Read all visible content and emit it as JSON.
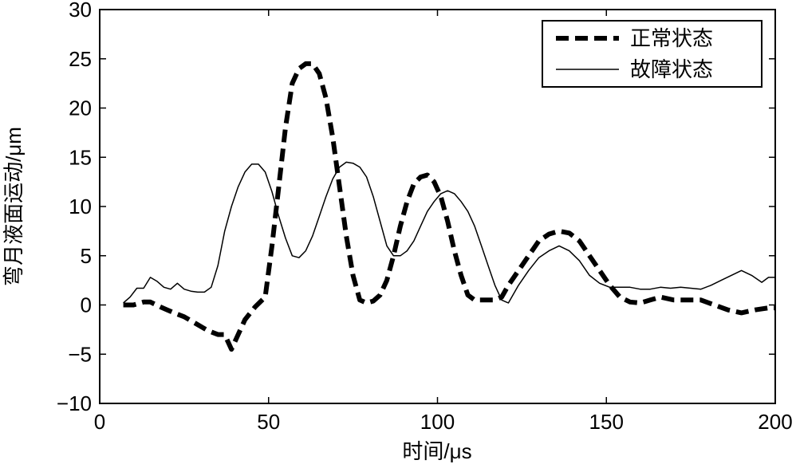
{
  "chart_data": {
    "type": "line",
    "title": "",
    "xlabel": "时间/μs",
    "ylabel": "弯月液面运动/μm",
    "xlim": [
      0,
      200
    ],
    "ylim": [
      -10,
      30
    ],
    "xticks": [
      "0",
      "50",
      "100",
      "150",
      "200"
    ],
    "yticks": [
      "−10",
      "−5",
      "0",
      "5",
      "10",
      "15",
      "20",
      "25",
      "30"
    ],
    "grid": false,
    "legend_position": "top-right",
    "series": [
      {
        "name": "正常状态",
        "style": "dashed-thick",
        "color": "#000000",
        "x": [
          7,
          10,
          13,
          15,
          18,
          20,
          22,
          25,
          28,
          30,
          32,
          35,
          37,
          39,
          41,
          43,
          46,
          49,
          51,
          53,
          55,
          57,
          59,
          61,
          63,
          65,
          67,
          69,
          71,
          73,
          75,
          77,
          79,
          81,
          83,
          85,
          87,
          89,
          91,
          93,
          95,
          97,
          99,
          101,
          103,
          105,
          107,
          109,
          111,
          113,
          115,
          117,
          119,
          121,
          124,
          127,
          130,
          133,
          136,
          139,
          142,
          145,
          148,
          151,
          154,
          157,
          160,
          163,
          166,
          170,
          174,
          178,
          182,
          186,
          190,
          194,
          198,
          200
        ],
        "y": [
          0,
          0,
          0.3,
          0.3,
          -0.2,
          -0.5,
          -0.8,
          -1.2,
          -1.8,
          -2.2,
          -2.6,
          -3.0,
          -3.0,
          -4.5,
          -3.0,
          -1.5,
          -0.2,
          0.8,
          6.0,
          12.0,
          18.0,
          22.5,
          24.0,
          24.5,
          24.5,
          23.5,
          21.0,
          17.0,
          12.0,
          7.0,
          3.0,
          0.5,
          0.2,
          0.4,
          1.0,
          2.5,
          5.0,
          8.0,
          10.5,
          12.3,
          13.0,
          13.2,
          12.5,
          11.0,
          8.5,
          5.5,
          3.0,
          1.0,
          0.5,
          0.5,
          0.5,
          0.5,
          0.8,
          2.0,
          3.5,
          5.0,
          6.5,
          7.2,
          7.5,
          7.3,
          6.5,
          5.0,
          3.5,
          2.0,
          0.8,
          0.3,
          0.2,
          0.5,
          0.8,
          0.5,
          0.5,
          0.5,
          0,
          -0.5,
          -0.8,
          -0.5,
          -0.3,
          -0.3
        ]
      },
      {
        "name": "故障状态",
        "style": "solid-thin",
        "color": "#000000",
        "x": [
          7,
          9,
          11,
          13,
          15,
          17,
          19,
          21,
          23,
          25,
          27,
          29,
          31,
          33,
          35,
          37,
          39,
          41,
          43,
          45,
          47,
          49,
          51,
          53,
          55,
          57,
          59,
          61,
          63,
          65,
          67,
          69,
          71,
          73,
          75,
          77,
          79,
          81,
          83,
          85,
          87,
          89,
          91,
          93,
          95,
          97,
          99,
          101,
          103,
          105,
          107,
          109,
          111,
          113,
          115,
          117,
          119,
          121,
          124,
          127,
          130,
          133,
          136,
          139,
          142,
          145,
          148,
          151,
          154,
          157,
          160,
          163,
          166,
          169,
          172,
          175,
          178,
          181,
          184,
          187,
          190,
          193,
          196,
          198,
          200
        ],
        "y": [
          0.2,
          0.8,
          1.7,
          1.7,
          2.8,
          2.4,
          1.8,
          1.6,
          2.2,
          1.6,
          1.4,
          1.3,
          1.3,
          1.8,
          4.0,
          7.5,
          10.0,
          12.0,
          13.5,
          14.3,
          14.3,
          13.5,
          11.5,
          9.0,
          6.8,
          5.0,
          4.8,
          5.5,
          7.0,
          9.0,
          11.0,
          12.8,
          14.0,
          14.5,
          14.4,
          14.0,
          13.0,
          11.0,
          8.5,
          6.0,
          5.0,
          5.0,
          5.5,
          6.5,
          8.0,
          9.5,
          10.5,
          11.3,
          11.6,
          11.3,
          10.5,
          9.5,
          8.0,
          6.0,
          4.0,
          2.0,
          0.5,
          0.2,
          2.0,
          3.5,
          4.8,
          5.5,
          6.0,
          5.5,
          4.5,
          3.0,
          2.2,
          1.8,
          1.8,
          1.8,
          1.6,
          1.6,
          1.8,
          1.7,
          1.8,
          1.7,
          1.6,
          2.0,
          2.5,
          3.0,
          3.5,
          3.0,
          2.3,
          2.8,
          2.8
        ]
      }
    ]
  }
}
